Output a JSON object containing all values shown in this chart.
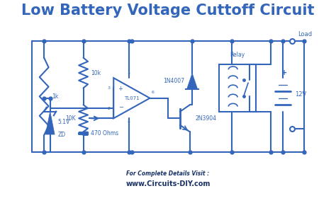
{
  "title": "Low Battery Voltage Cuttoff Circuit",
  "title_color": "#3366bb",
  "title_fontsize": 15,
  "bg_color": "#ffffff",
  "circuit_color": "#3366bb",
  "line_width": 1.5,
  "footer_text1": "For Complete Details Visit :",
  "footer_text2": "www.Circuits-DIY.com",
  "footer_color1": "#1a3366",
  "footer_color2": "#1a3366",
  "labels": {
    "R1": "1k",
    "R2": "10k",
    "R3": "10K",
    "R4": "470 Ohms",
    "D1": "1N4007",
    "Q1": "2N3904",
    "ZD1_line1": "5.1V",
    "ZD1_line2": "ZD",
    "IC1": "TL071",
    "relay": "Relay",
    "bat": "12V",
    "load": "Load"
  }
}
